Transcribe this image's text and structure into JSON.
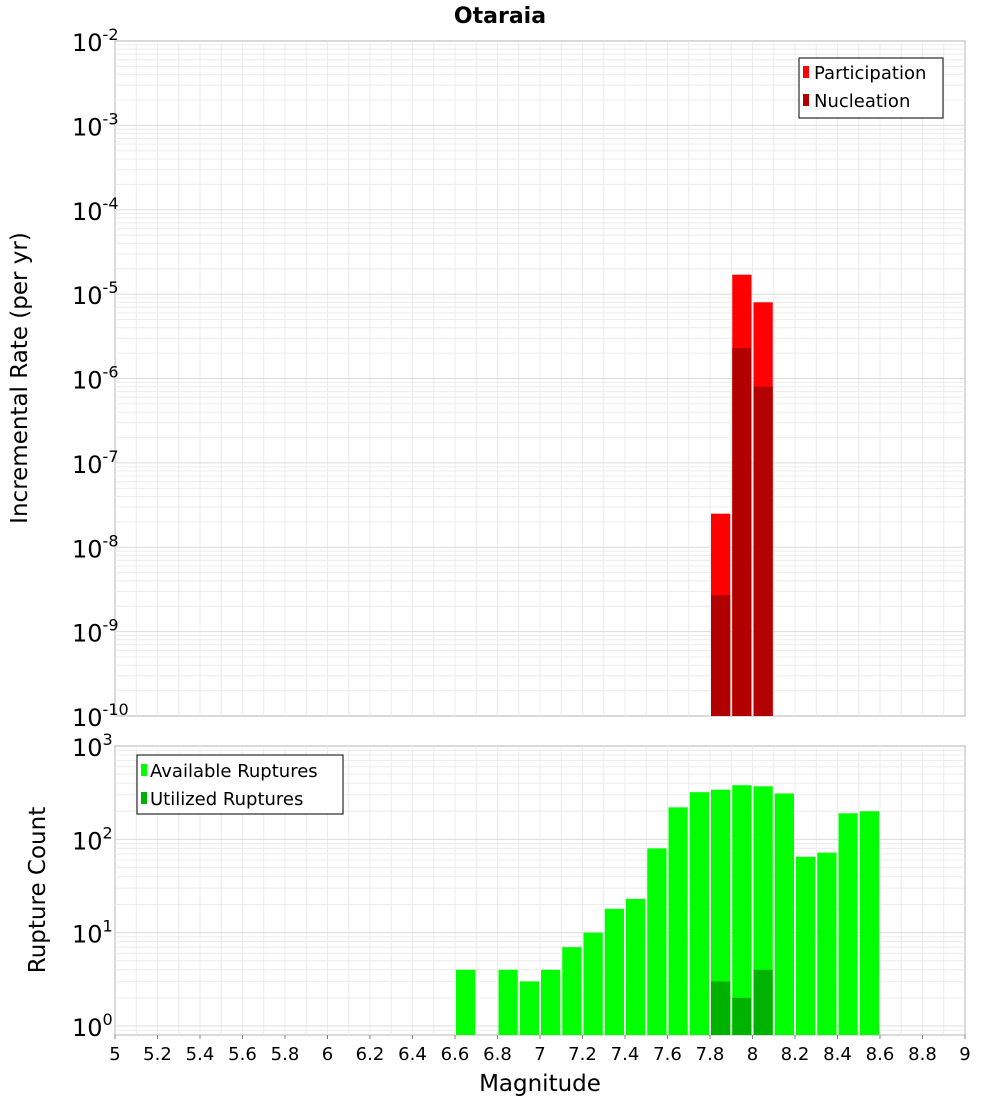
{
  "chart_data": [
    {
      "type": "bar",
      "title": "Otaraia",
      "ylabel": "Incremental Rate (per yr)",
      "xlabel": "",
      "xlim": [
        5,
        9
      ],
      "ylim": [
        1e-10,
        0.01
      ],
      "y_scale": "log",
      "grid": true,
      "legend_position": "top-right",
      "bar_width": 0.1,
      "series": [
        {
          "name": "Participation",
          "color": "#ff0000",
          "x": [
            7.85,
            7.95,
            8.05
          ],
          "values": [
            2.5e-08,
            1.7e-05,
            8e-06
          ]
        },
        {
          "name": "Nucleation",
          "color": "#b20000",
          "x": [
            7.85,
            7.95,
            8.05
          ],
          "values": [
            2.7e-09,
            2.3e-06,
            8e-07
          ]
        }
      ]
    },
    {
      "type": "bar",
      "title": "",
      "ylabel": "Rupture Count",
      "xlabel": "Magnitude",
      "xlim": [
        5,
        9
      ],
      "ylim": [
        0.8,
        1000
      ],
      "y_scale": "log",
      "grid": true,
      "legend_position": "top-left",
      "bar_width": 0.1,
      "series": [
        {
          "name": "Available Ruptures",
          "color": "#00ff00",
          "x": [
            6.65,
            6.85,
            6.95,
            7.05,
            7.15,
            7.25,
            7.35,
            7.45,
            7.55,
            7.65,
            7.75,
            7.85,
            7.95,
            8.05,
            8.15,
            8.25,
            8.35,
            8.45,
            8.55
          ],
          "values": [
            4,
            4,
            3,
            4,
            7,
            10,
            18,
            23,
            80,
            220,
            320,
            340,
            380,
            370,
            310,
            65,
            72,
            190,
            200
          ]
        },
        {
          "name": "Utilized Ruptures",
          "color": "#00b200",
          "x": [
            7.85,
            7.95,
            8.05
          ],
          "values": [
            3,
            2,
            4
          ]
        }
      ]
    }
  ],
  "top_yticks": [
    {
      "value": 1e-10,
      "base": "10",
      "exp": "-10"
    },
    {
      "value": 1e-09,
      "base": "10",
      "exp": "-9"
    },
    {
      "value": 1e-08,
      "base": "10",
      "exp": "-8"
    },
    {
      "value": 1e-07,
      "base": "10",
      "exp": "-7"
    },
    {
      "value": 1e-06,
      "base": "10",
      "exp": "-6"
    },
    {
      "value": 1e-05,
      "base": "10",
      "exp": "-5"
    },
    {
      "value": 0.0001,
      "base": "10",
      "exp": "-4"
    },
    {
      "value": 0.001,
      "base": "10",
      "exp": "-3"
    },
    {
      "value": 0.01,
      "base": "10",
      "exp": "-2"
    }
  ],
  "bottom_yticks": [
    {
      "value": 1,
      "base": "10",
      "exp": "0"
    },
    {
      "value": 10,
      "base": "10",
      "exp": "1"
    },
    {
      "value": 100,
      "base": "10",
      "exp": "2"
    },
    {
      "value": 1000,
      "base": "10",
      "exp": "3"
    }
  ],
  "xticks": [
    {
      "value": 5,
      "label": "5"
    },
    {
      "value": 5.2,
      "label": "5.2"
    },
    {
      "value": 5.4,
      "label": "5.4"
    },
    {
      "value": 5.6,
      "label": "5.6"
    },
    {
      "value": 5.8,
      "label": "5.8"
    },
    {
      "value": 6,
      "label": "6"
    },
    {
      "value": 6.2,
      "label": "6.2"
    },
    {
      "value": 6.4,
      "label": "6.4"
    },
    {
      "value": 6.6,
      "label": "6.6"
    },
    {
      "value": 6.8,
      "label": "6.8"
    },
    {
      "value": 7,
      "label": "7"
    },
    {
      "value": 7.2,
      "label": "7.2"
    },
    {
      "value": 7.4,
      "label": "7.4"
    },
    {
      "value": 7.6,
      "label": "7.6"
    },
    {
      "value": 7.8,
      "label": "7.8"
    },
    {
      "value": 8,
      "label": "8"
    },
    {
      "value": 8.2,
      "label": "8.2"
    },
    {
      "value": 8.4,
      "label": "8.4"
    },
    {
      "value": 8.6,
      "label": "8.6"
    },
    {
      "value": 8.8,
      "label": "8.8"
    },
    {
      "value": 9,
      "label": "9"
    }
  ]
}
